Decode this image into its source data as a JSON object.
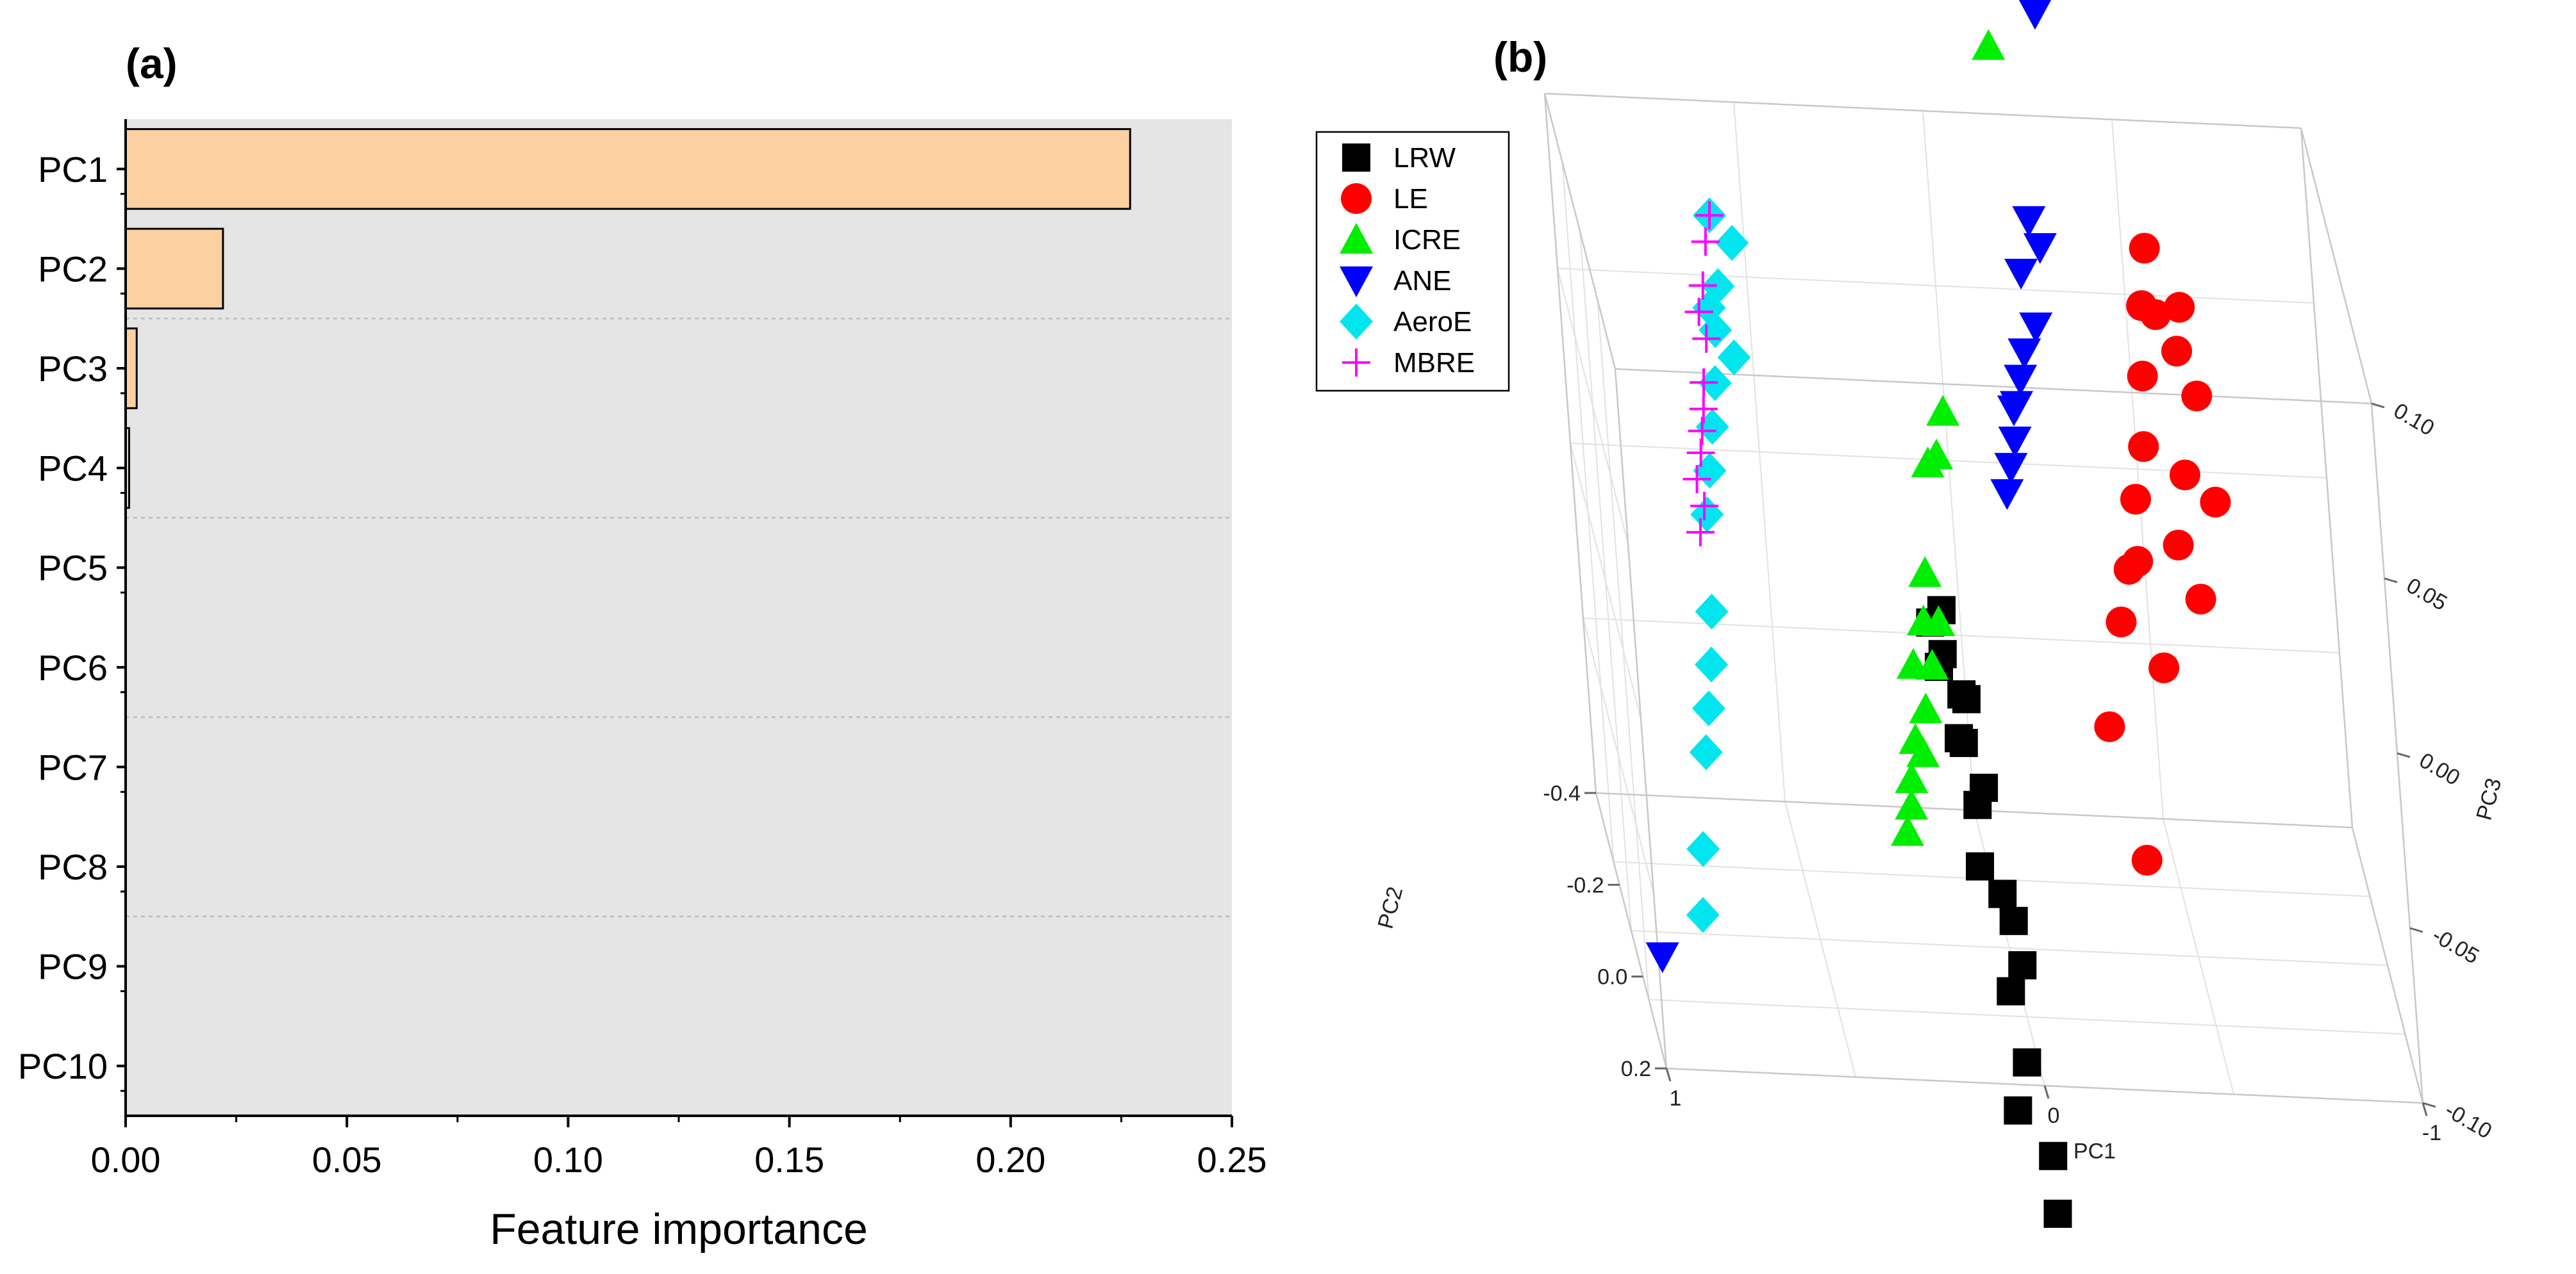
{
  "panels": {
    "a_label": "(a)",
    "b_label": "(b)"
  },
  "colors": {
    "bar_fill": "#fdd0a2",
    "bar_stroke": "#000000",
    "plot_bg": "#e5e5e5",
    "grid": "#bdbdbd"
  },
  "chart_data": [
    {
      "type": "bar",
      "orientation": "horizontal",
      "panel": "(a)",
      "categories": [
        "PC1",
        "PC2",
        "PC3",
        "PC4",
        "PC5",
        "PC6",
        "PC7",
        "PC8",
        "PC9",
        "PC10"
      ],
      "values": [
        0.227,
        0.022,
        0.0025,
        0.0008,
        0.0,
        0.0,
        0.0,
        0.0,
        0.0,
        0.0
      ],
      "xlabel": "Feature importance",
      "ylabel": "",
      "xlim": [
        0.0,
        0.25
      ],
      "xticks": [
        "0.00",
        "0.05",
        "0.10",
        "0.15",
        "0.20",
        "0.25"
      ],
      "grid": "dotted horizontal separators"
    },
    {
      "type": "scatter",
      "projection": "3d",
      "panel": "(b)",
      "axes": {
        "x": {
          "label": "PC1",
          "ticks": [
            "1",
            "0",
            "-1"
          ]
        },
        "y": {
          "label": "PC2",
          "ticks": [
            "-0.4",
            "-0.2",
            "0.0",
            "0.2"
          ]
        },
        "z": {
          "label": "PC3",
          "ticks": [
            "0.10",
            "0.05",
            "0.00",
            "-0.05",
            "-0.10"
          ]
        }
      },
      "legend_position": "top-left",
      "series": [
        {
          "name": "LRW",
          "marker": "square",
          "color": "#000000",
          "points": [
            [
              0.03,
              -0.26,
              -0.05
            ],
            [
              0.05,
              -0.24,
              -0.06
            ],
            [
              0.08,
              -0.28,
              -0.04
            ],
            [
              0.01,
              -0.22,
              -0.07
            ],
            [
              0.07,
              -0.3,
              -0.03
            ],
            [
              0.04,
              -0.27,
              -0.05
            ],
            [
              0.1,
              -0.31,
              -0.035
            ],
            [
              0.06,
              -0.25,
              -0.06
            ],
            [
              -0.04,
              -0.14,
              -0.11
            ],
            [
              0.0,
              -0.12,
              -0.115
            ],
            [
              -0.02,
              -0.08,
              -0.13
            ],
            [
              0.02,
              -0.05,
              -0.14
            ],
            [
              -0.06,
              -0.03,
              -0.15
            ],
            [
              -0.05,
              0.02,
              -0.16
            ],
            [
              -0.03,
              -0.16,
              -0.1
            ],
            [
              0.04,
              -0.2,
              -0.09
            ],
            [
              -0.01,
              -0.18,
              -0.095
            ],
            [
              0.03,
              -0.22,
              -0.075
            ],
            [
              0.09,
              -0.29,
              -0.045
            ]
          ]
        },
        {
          "name": "LE",
          "marker": "circle",
          "color": "#ff0000",
          "points": [
            [
              -0.52,
              -0.3,
              0.06
            ],
            [
              -0.56,
              -0.32,
              0.055
            ],
            [
              -0.6,
              -0.28,
              0.05
            ],
            [
              -0.5,
              -0.26,
              0.045
            ],
            [
              -0.62,
              -0.3,
              0.06
            ],
            [
              -0.48,
              -0.22,
              0.03
            ],
            [
              -0.58,
              -0.2,
              0.025
            ],
            [
              -0.44,
              -0.18,
              0.02
            ],
            [
              -0.54,
              -0.16,
              0.01
            ],
            [
              -0.4,
              -0.14,
              0.005
            ],
            [
              -0.66,
              -0.22,
              0.015
            ],
            [
              -0.36,
              -0.1,
              -0.005
            ],
            [
              -0.46,
              -0.08,
              -0.015
            ],
            [
              -0.58,
              -0.12,
              0.0
            ],
            [
              -0.3,
              -0.06,
              -0.03
            ],
            [
              -0.36,
              0.0,
              -0.06
            ],
            [
              -0.55,
              -0.35,
              0.07
            ],
            [
              -0.64,
              -0.26,
              0.04
            ],
            [
              -0.42,
              -0.12,
              0.01
            ]
          ]
        },
        {
          "name": "ICRE",
          "marker": "triangle-up",
          "color": "#00ee00",
          "points": [
            [
              -0.3,
              -0.55,
              0.12
            ],
            [
              -0.22,
              -0.55,
              0.1
            ],
            [
              0.05,
              -0.2,
              0.04
            ],
            [
              0.08,
              -0.18,
              0.03
            ],
            [
              0.1,
              -0.2,
              0.025
            ],
            [
              0.14,
              -0.15,
              0.0
            ],
            [
              0.16,
              -0.12,
              -0.01
            ],
            [
              0.2,
              -0.1,
              -0.02
            ],
            [
              0.22,
              -0.05,
              -0.035
            ],
            [
              0.25,
              -0.02,
              -0.05
            ],
            [
              0.24,
              -0.04,
              -0.045
            ],
            [
              0.2,
              -0.06,
              -0.04
            ],
            [
              0.18,
              -0.08,
              -0.03
            ],
            [
              0.12,
              -0.12,
              -0.01
            ],
            [
              0.27,
              0.0,
              -0.055
            ],
            [
              0.15,
              -0.1,
              -0.02
            ]
          ]
        },
        {
          "name": "ANE",
          "marker": "triangle-down",
          "color": "#0000ff",
          "points": [
            [
              -0.35,
              -0.55,
              0.11
            ],
            [
              -0.26,
              -0.4,
              0.07
            ],
            [
              -0.28,
              -0.38,
              0.065
            ],
            [
              -0.22,
              -0.36,
              0.06
            ],
            [
              -0.24,
              -0.32,
              0.05
            ],
            [
              -0.2,
              -0.3,
              0.045
            ],
            [
              -0.18,
              -0.28,
              0.04
            ],
            [
              -0.16,
              -0.26,
              0.035
            ],
            [
              -0.14,
              -0.22,
              0.03
            ],
            [
              -0.12,
              -0.2,
              0.025
            ],
            [
              -0.1,
              -0.18,
              0.02
            ],
            [
              -0.15,
              -0.25,
              0.035
            ],
            [
              0.9,
              -0.2,
              -0.12
            ]
          ]
        },
        {
          "name": "AeroE",
          "marker": "diamond",
          "color": "#00e5ee",
          "points": [
            [
              0.55,
              -0.32,
              0.07
            ],
            [
              0.6,
              -0.3,
              0.06
            ],
            [
              0.62,
              -0.28,
              0.05
            ],
            [
              0.58,
              -0.26,
              0.045
            ],
            [
              0.64,
              -0.24,
              0.04
            ],
            [
              0.66,
              -0.22,
              0.03
            ],
            [
              0.68,
              -0.2,
              0.02
            ],
            [
              0.7,
              -0.18,
              0.01
            ],
            [
              0.72,
              -0.12,
              -0.01
            ],
            [
              0.74,
              -0.08,
              -0.02
            ],
            [
              0.76,
              -0.06,
              -0.03
            ],
            [
              0.78,
              -0.04,
              -0.04
            ],
            [
              0.82,
              0.02,
              -0.06
            ],
            [
              0.84,
              0.05,
              -0.075
            ],
            [
              0.6,
              -0.34,
              0.075
            ],
            [
              0.63,
              -0.29,
              0.055
            ]
          ]
        },
        {
          "name": "MBRE",
          "marker": "plus",
          "color": "#ff00ff",
          "points": [
            [
              0.95,
              -0.6,
              0.15
            ],
            [
              0.6,
              -0.34,
              0.075
            ],
            [
              0.62,
              -0.32,
              0.07
            ],
            [
              0.64,
              -0.3,
              0.06
            ],
            [
              0.66,
              -0.28,
              0.055
            ],
            [
              0.65,
              -0.26,
              0.05
            ],
            [
              0.67,
              -0.24,
              0.04
            ],
            [
              0.68,
              -0.22,
              0.035
            ],
            [
              0.7,
              -0.2,
              0.025
            ],
            [
              0.72,
              -0.18,
              0.02
            ],
            [
              0.71,
              -0.16,
              0.015
            ],
            [
              0.73,
              -0.14,
              0.01
            ],
            [
              0.69,
              -0.21,
              0.03
            ]
          ]
        }
      ]
    }
  ]
}
